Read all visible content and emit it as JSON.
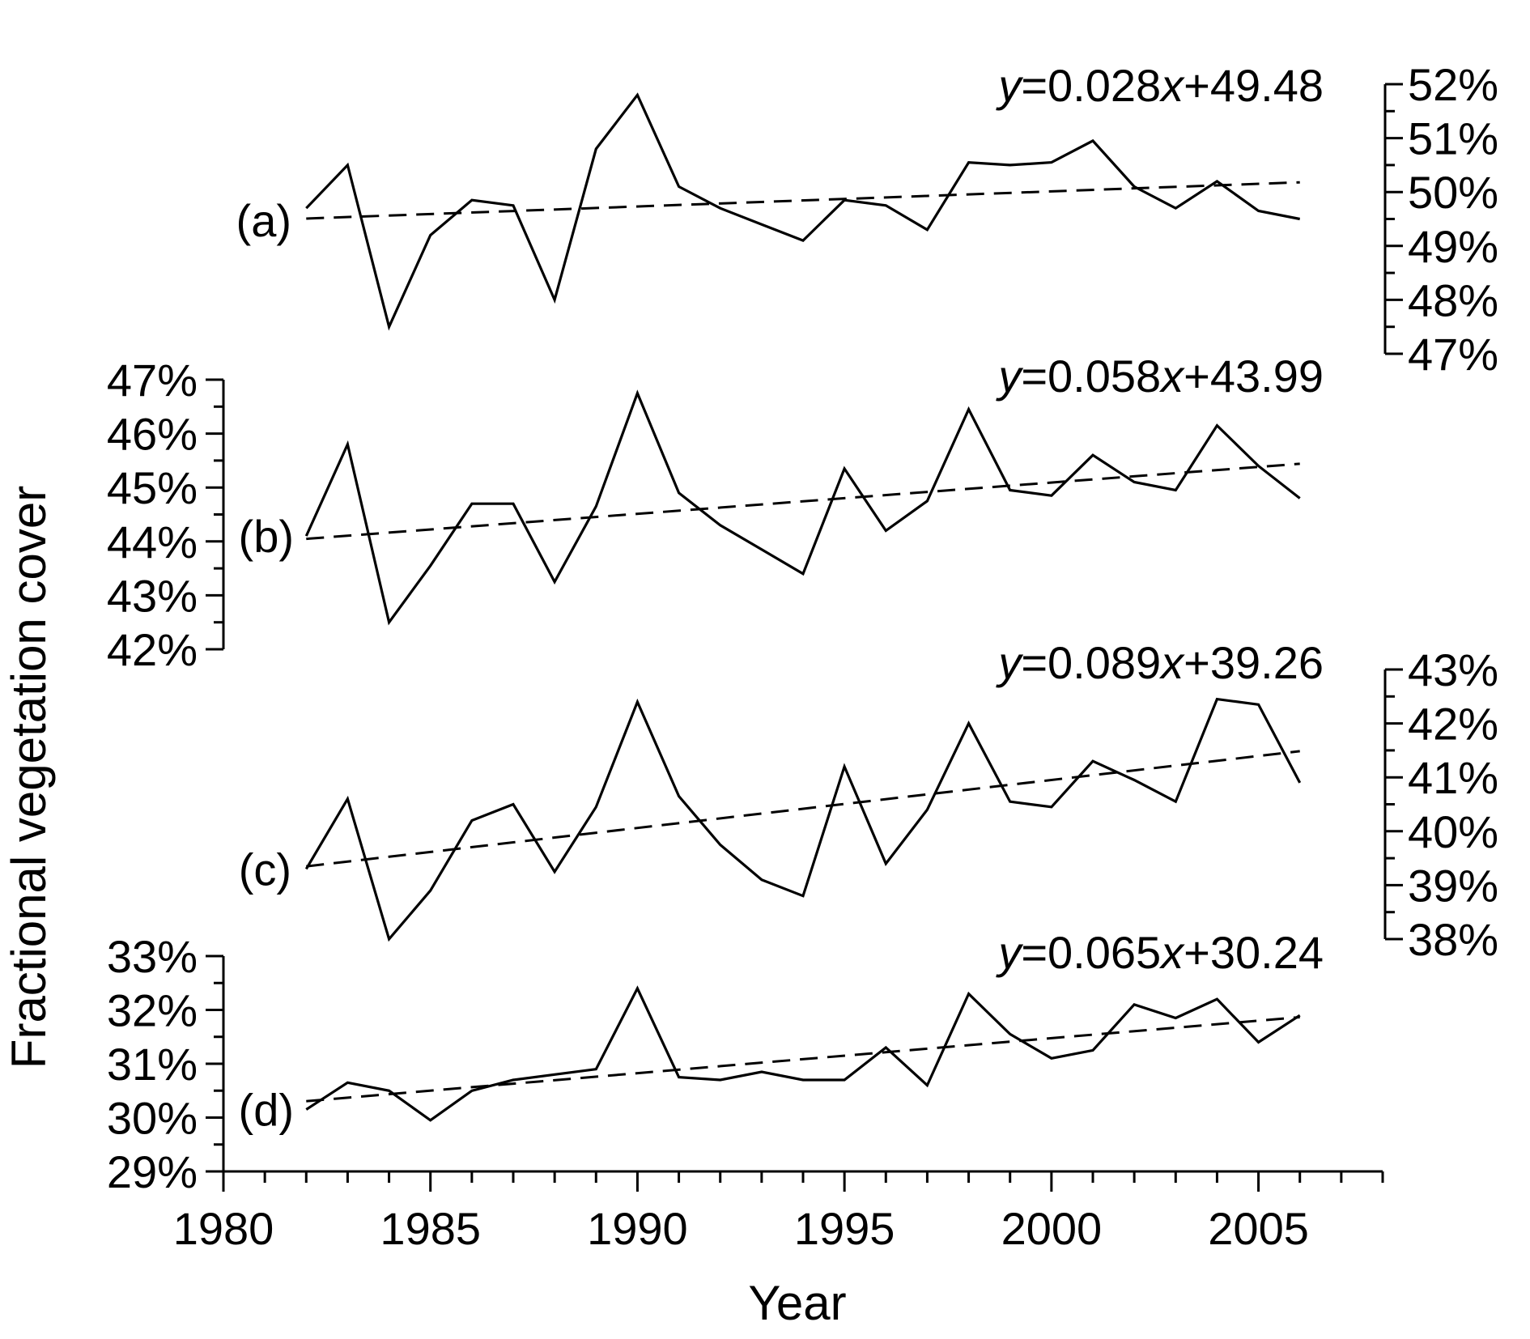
{
  "chart_data": {
    "type": "line",
    "title": "",
    "xlabel": "Year",
    "ylabel": "Fractional vegetation cover",
    "xlim": [
      1980,
      2008
    ],
    "x_ticks": [
      1980,
      1985,
      1990,
      1995,
      2000,
      2005
    ],
    "x_tick_labels": [
      "1980",
      "1985",
      "1990",
      "1995",
      "2000",
      "2005"
    ],
    "years": [
      1982,
      1983,
      1984,
      1985,
      1986,
      1987,
      1988,
      1989,
      1990,
      1991,
      1992,
      1993,
      1994,
      1995,
      1996,
      1997,
      1998,
      1999,
      2000,
      2001,
      2002,
      2003,
      2004,
      2005,
      2006
    ],
    "panels": [
      {
        "label": "(a)",
        "equation": {
          "prefix": "y",
          "mid": "=0.028",
          "var": "x",
          "suffix": "+49.48"
        },
        "axis_side": "right",
        "ylim": [
          47,
          52
        ],
        "y_tick_labels": [
          "47%",
          "48%",
          "49%",
          "50%",
          "51%",
          "52%"
        ],
        "values": [
          49.7,
          50.5,
          47.5,
          49.2,
          49.85,
          49.75,
          48.0,
          50.8,
          51.8,
          50.1,
          49.7,
          49.4,
          49.1,
          49.85,
          49.75,
          49.3,
          50.55,
          50.5,
          50.55,
          50.95,
          50.1,
          49.7,
          50.2,
          49.65,
          49.5
        ],
        "trend": {
          "slope": 0.028,
          "intercept": 49.48
        }
      },
      {
        "label": "(b)",
        "equation": {
          "prefix": "y",
          "mid": "=0.058",
          "var": "x",
          "suffix": "+43.99"
        },
        "axis_side": "left",
        "ylim": [
          42,
          47
        ],
        "y_tick_labels": [
          "42%",
          "43%",
          "44%",
          "45%",
          "46%",
          "47%"
        ],
        "values": [
          44.1,
          45.8,
          42.5,
          43.55,
          44.7,
          44.7,
          43.25,
          44.65,
          46.75,
          44.9,
          44.3,
          43.85,
          43.4,
          45.35,
          44.2,
          44.75,
          46.45,
          44.95,
          44.85,
          45.6,
          45.1,
          44.95,
          46.15,
          45.4,
          44.8
        ],
        "trend": {
          "slope": 0.058,
          "intercept": 43.99
        }
      },
      {
        "label": "(c)",
        "equation": {
          "prefix": "y",
          "mid": "=0.089",
          "var": "x",
          "suffix": "+39.26"
        },
        "axis_side": "right",
        "ylim": [
          38,
          43
        ],
        "y_tick_labels": [
          "38%",
          "39%",
          "40%",
          "41%",
          "42%",
          "43%"
        ],
        "values": [
          39.3,
          40.6,
          38.0,
          38.9,
          40.2,
          40.5,
          39.25,
          40.45,
          42.4,
          40.65,
          39.75,
          39.1,
          38.8,
          41.2,
          39.4,
          40.4,
          42.0,
          40.55,
          40.45,
          41.3,
          40.95,
          40.55,
          42.45,
          42.35,
          40.9
        ],
        "trend": {
          "slope": 0.089,
          "intercept": 39.26
        }
      },
      {
        "label": "(d)",
        "equation": {
          "prefix": "y",
          "mid": "=0.065",
          "var": "x",
          "suffix": "+30.24"
        },
        "axis_side": "left",
        "ylim": [
          29,
          33
        ],
        "y_tick_labels": [
          "29%",
          "30%",
          "31%",
          "32%",
          "33%"
        ],
        "values": [
          30.15,
          30.65,
          30.5,
          29.95,
          30.5,
          30.7,
          30.8,
          30.9,
          32.4,
          30.75,
          30.7,
          30.85,
          30.7,
          30.7,
          31.3,
          30.6,
          32.3,
          31.55,
          31.1,
          31.25,
          32.1,
          31.85,
          32.2,
          31.4,
          31.9
        ],
        "trend": {
          "slope": 0.065,
          "intercept": 30.24
        }
      }
    ]
  }
}
